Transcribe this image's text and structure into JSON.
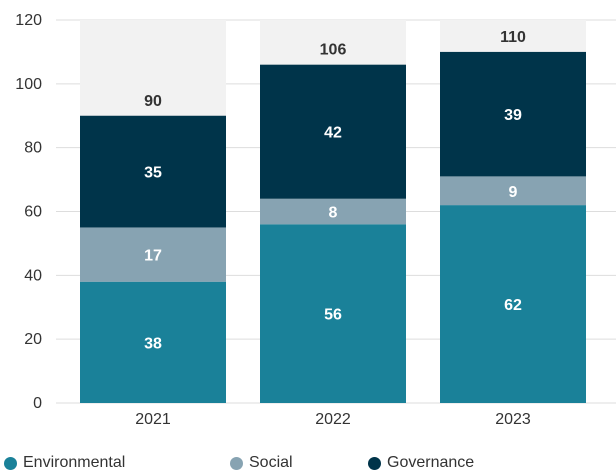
{
  "chart_data": {
    "type": "bar",
    "stacked": true,
    "categories": [
      "2021",
      "2022",
      "2023"
    ],
    "series": [
      {
        "name": "Environmental",
        "values": [
          38,
          56,
          62
        ],
        "color": "#1a8199",
        "label_color": "#ffffff"
      },
      {
        "name": "Social",
        "values": [
          17,
          8,
          9
        ],
        "color": "#87a3b2",
        "label_color": "#ffffff"
      },
      {
        "name": "Governance",
        "values": [
          35,
          42,
          39
        ],
        "color": "#00344a",
        "label_color": "#ffffff"
      }
    ],
    "totals": [
      90,
      106,
      110
    ],
    "total_label_color": "#333333",
    "ylim": [
      0,
      120
    ],
    "yticks": [
      "0",
      "20",
      "40",
      "60",
      "80",
      "100",
      "120"
    ],
    "ytick_values": [
      0,
      20,
      40,
      60,
      80,
      100,
      120
    ],
    "grid": true,
    "background_bar_color": "#f2f2f2",
    "grid_color": "#dddddd",
    "legend_position": "bottom-left",
    "title": "",
    "xlabel": "",
    "ylabel": ""
  }
}
